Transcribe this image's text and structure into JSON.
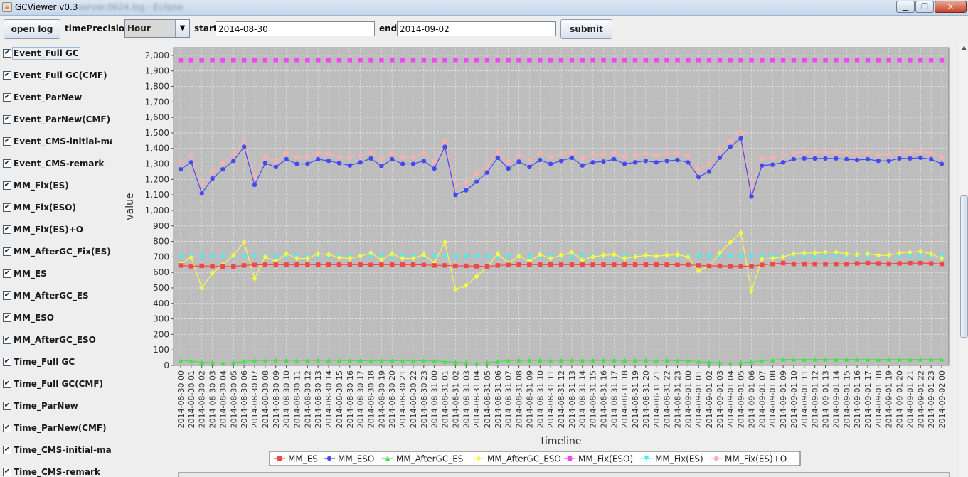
{
  "window": {
    "title": "GCViewer v0.3",
    "title_blurred": "- server.0624.log - Eclipse",
    "min_glyph": "▁",
    "max_glyph": "❐",
    "close_glyph": "✕"
  },
  "toolbar": {
    "open_log_label": "open log",
    "time_precision_label": "timePrecision",
    "time_precision_value": "Hour",
    "start_label": "start",
    "start_value": "2014-08-30",
    "end_label": "end",
    "end_value": "2014-09-02",
    "submit_label": "submit"
  },
  "sidebar": {
    "check_glyph": "✔",
    "items": [
      {
        "label": "Event_Full GC",
        "checked": true
      },
      {
        "label": "Event_Full GC(CMF)",
        "checked": true
      },
      {
        "label": "Event_ParNew",
        "checked": true
      },
      {
        "label": "Event_ParNew(CMF)",
        "checked": true
      },
      {
        "label": "Event_CMS-initial-mark",
        "checked": true
      },
      {
        "label": "Event_CMS-remark",
        "checked": true
      },
      {
        "label": "MM_Fix(ES)",
        "checked": true
      },
      {
        "label": "MM_Fix(ESO)",
        "checked": true
      },
      {
        "label": "MM_Fix(ES)+O",
        "checked": true
      },
      {
        "label": "MM_AfterGC_Fix(ES)+O",
        "checked": true
      },
      {
        "label": "MM_ES",
        "checked": true
      },
      {
        "label": "MM_AfterGC_ES",
        "checked": true
      },
      {
        "label": "MM_ESO",
        "checked": true
      },
      {
        "label": "MM_AfterGC_ESO",
        "checked": true
      },
      {
        "label": "Time_Full GC",
        "checked": true
      },
      {
        "label": "Time_Full GC(CMF)",
        "checked": true
      },
      {
        "label": "Time_ParNew",
        "checked": true
      },
      {
        "label": "Time_ParNew(CMF)",
        "checked": true
      },
      {
        "label": "Time_CMS-initial-mark",
        "checked": true
      },
      {
        "label": "Time_CMS-remark",
        "checked": true
      }
    ]
  },
  "colors": {
    "plot_bg": "#bdbdbd",
    "MM_ES": "#f04848",
    "MM_ESO": "#4848f0",
    "MM_AfterGC_ES": "#48e048",
    "MM_AfterGC_ESO": "#f8f848",
    "MM_Fix(ESO)": "#f048f0",
    "MM_Fix(ES)": "#48f0f0",
    "MM_Fix(ES)+O": "#f8b0b0"
  },
  "chart_data": {
    "type": "line",
    "xlabel": "timeline",
    "ylabel": "value",
    "ylim": [
      0,
      2050
    ],
    "yticks": [
      "0",
      "100",
      "200",
      "300",
      "400",
      "500",
      "600",
      "700",
      "800",
      "900",
      "1,000",
      "1,100",
      "1,200",
      "1,300",
      "1,400",
      "1,500",
      "1,600",
      "1,700",
      "1,800",
      "1,900",
      "2,000"
    ],
    "grid": true,
    "legend_position": "bottom",
    "x": [
      "2014-08-30 00",
      "2014-08-30 01",
      "2014-08-30 02",
      "2014-08-30 03",
      "2014-08-30 04",
      "2014-08-30 05",
      "2014-08-30 06",
      "2014-08-30 07",
      "2014-08-30 08",
      "2014-08-30 09",
      "2014-08-30 10",
      "2014-08-30 11",
      "2014-08-30 12",
      "2014-08-30 13",
      "2014-08-30 14",
      "2014-08-30 15",
      "2014-08-30 16",
      "2014-08-30 17",
      "2014-08-30 18",
      "2014-08-30 19",
      "2014-08-30 20",
      "2014-08-30 21",
      "2014-08-30 22",
      "2014-08-30 23",
      "2014-08-31 00",
      "2014-08-31 01",
      "2014-08-31 02",
      "2014-08-31 03",
      "2014-08-31 04",
      "2014-08-31 05",
      "2014-08-31 06",
      "2014-08-31 07",
      "2014-08-31 08",
      "2014-08-31 09",
      "2014-08-31 10",
      "2014-08-31 11",
      "2014-08-31 12",
      "2014-08-31 13",
      "2014-08-31 14",
      "2014-08-31 15",
      "2014-08-31 16",
      "2014-08-31 17",
      "2014-08-31 18",
      "2014-08-31 19",
      "2014-08-31 20",
      "2014-08-31 21",
      "2014-08-31 22",
      "2014-08-31 23",
      "2014-09-01 00",
      "2014-09-01 01",
      "2014-09-01 02",
      "2014-09-01 03",
      "2014-09-01 04",
      "2014-09-01 05",
      "2014-09-01 06",
      "2014-09-01 07",
      "2014-09-01 08",
      "2014-09-01 09",
      "2014-09-01 10",
      "2014-09-01 11",
      "2014-09-01 12",
      "2014-09-01 13",
      "2014-09-01 14",
      "2014-09-01 15",
      "2014-09-01 16",
      "2014-09-01 17",
      "2014-09-01 18",
      "2014-09-01 19",
      "2014-09-01 20",
      "2014-09-01 21",
      "2014-09-01 22",
      "2014-09-01 23",
      "2014-09-02 00"
    ],
    "series": [
      {
        "name": "MM_ES",
        "marker": "square",
        "values": [
          645,
          640,
          642,
          640,
          638,
          638,
          645,
          648,
          650,
          650,
          650,
          650,
          650,
          650,
          650,
          650,
          650,
          650,
          648,
          650,
          650,
          650,
          650,
          648,
          645,
          645,
          642,
          642,
          640,
          638,
          645,
          648,
          650,
          650,
          650,
          650,
          650,
          650,
          650,
          650,
          650,
          650,
          650,
          650,
          650,
          650,
          650,
          648,
          648,
          645,
          642,
          642,
          640,
          640,
          640,
          648,
          655,
          660,
          655,
          655,
          655,
          655,
          655,
          655,
          658,
          660,
          658,
          656,
          658,
          660,
          660,
          658,
          655
        ]
      },
      {
        "name": "MM_ESO",
        "marker": "circle",
        "values": [
          1265,
          1310,
          1110,
          1205,
          1265,
          1320,
          1410,
          1165,
          1305,
          1280,
          1330,
          1300,
          1300,
          1330,
          1320,
          1305,
          1290,
          1310,
          1335,
          1285,
          1330,
          1300,
          1300,
          1320,
          1270,
          1410,
          1100,
          1130,
          1185,
          1245,
          1340,
          1270,
          1315,
          1280,
          1325,
          1300,
          1320,
          1340,
          1290,
          1310,
          1315,
          1330,
          1300,
          1310,
          1320,
          1310,
          1320,
          1325,
          1310,
          1215,
          1250,
          1340,
          1410,
          1465,
          1090,
          1290,
          1295,
          1310,
          1330,
          1335,
          1335,
          1335,
          1335,
          1330,
          1325,
          1330,
          1320,
          1320,
          1335,
          1335,
          1340,
          1330,
          1300
        ]
      },
      {
        "name": "MM_AfterGC_ES",
        "marker": "triangle",
        "values": [
          30,
          28,
          20,
          18,
          15,
          18,
          25,
          30,
          32,
          32,
          32,
          32,
          32,
          32,
          32,
          32,
          30,
          30,
          30,
          30,
          30,
          30,
          30,
          30,
          28,
          25,
          20,
          18,
          15,
          18,
          25,
          30,
          32,
          32,
          32,
          32,
          32,
          32,
          32,
          32,
          32,
          32,
          32,
          32,
          32,
          32,
          32,
          30,
          30,
          25,
          20,
          18,
          15,
          18,
          22,
          30,
          35,
          38,
          38,
          38,
          38,
          38,
          38,
          38,
          38,
          38,
          38,
          38,
          38,
          38,
          38,
          38,
          38
        ]
      },
      {
        "name": "MM_AfterGC_ESO",
        "marker": "diamond",
        "values": [
          655,
          695,
          500,
          595,
          650,
          710,
          795,
          560,
          700,
          670,
          720,
          690,
          690,
          720,
          715,
          695,
          690,
          705,
          725,
          680,
          720,
          690,
          690,
          715,
          660,
          795,
          490,
          515,
          575,
          635,
          720,
          660,
          705,
          670,
          715,
          690,
          710,
          730,
          680,
          700,
          710,
          715,
          690,
          700,
          710,
          705,
          710,
          715,
          700,
          610,
          640,
          725,
          795,
          855,
          480,
          685,
          690,
          700,
          720,
          725,
          725,
          730,
          730,
          720,
          715,
          720,
          710,
          710,
          725,
          730,
          735,
          720,
          690
        ]
      },
      {
        "name": "MM_Fix(ESO)",
        "marker": "square",
        "values": [
          1970,
          1970,
          1970,
          1970,
          1970,
          1970,
          1970,
          1970,
          1970,
          1970,
          1970,
          1970,
          1970,
          1970,
          1970,
          1970,
          1970,
          1970,
          1970,
          1970,
          1970,
          1970,
          1970,
          1970,
          1970,
          1970,
          1970,
          1970,
          1970,
          1970,
          1970,
          1970,
          1970,
          1970,
          1970,
          1970,
          1970,
          1970,
          1970,
          1970,
          1970,
          1970,
          1970,
          1970,
          1970,
          1970,
          1970,
          1970,
          1970,
          1970,
          1970,
          1970,
          1970,
          1970,
          1970,
          1970,
          1970,
          1970,
          1970,
          1970,
          1970,
          1970,
          1970,
          1970,
          1970,
          1970,
          1970,
          1970,
          1970,
          1970,
          1970,
          1970,
          1970
        ]
      },
      {
        "name": "MM_Fix(ES)",
        "marker": "triangle-down",
        "values": [
          700,
          700,
          700,
          700,
          700,
          700,
          700,
          700,
          700,
          700,
          700,
          700,
          700,
          700,
          700,
          700,
          700,
          700,
          700,
          700,
          700,
          700,
          700,
          700,
          700,
          700,
          700,
          700,
          700,
          700,
          700,
          700,
          700,
          700,
          700,
          700,
          700,
          700,
          700,
          700,
          700,
          700,
          700,
          700,
          700,
          700,
          700,
          700,
          700,
          700,
          700,
          700,
          700,
          700,
          700,
          700,
          700,
          700,
          700,
          700,
          700,
          700,
          700,
          700,
          700,
          700,
          700,
          700,
          700,
          700,
          700,
          700,
          700
        ]
      },
      {
        "name": "MM_Fix(ES)+O",
        "marker": "circle",
        "values": [
          1310,
          1355,
          1165,
          1250,
          1305,
          1360,
          1450,
          1215,
          1345,
          1320,
          1370,
          1345,
          1345,
          1370,
          1365,
          1345,
          1340,
          1355,
          1375,
          1330,
          1370,
          1345,
          1345,
          1365,
          1315,
          1450,
          1160,
          1180,
          1235,
          1290,
          1380,
          1315,
          1355,
          1325,
          1370,
          1345,
          1360,
          1380,
          1335,
          1355,
          1360,
          1370,
          1345,
          1355,
          1365,
          1355,
          1365,
          1370,
          1355,
          1265,
          1300,
          1385,
          1450,
          1505,
          1150,
          1335,
          1340,
          1355,
          1370,
          1375,
          1375,
          1375,
          1375,
          1370,
          1365,
          1370,
          1360,
          1360,
          1375,
          1375,
          1380,
          1370,
          1345
        ]
      }
    ]
  }
}
